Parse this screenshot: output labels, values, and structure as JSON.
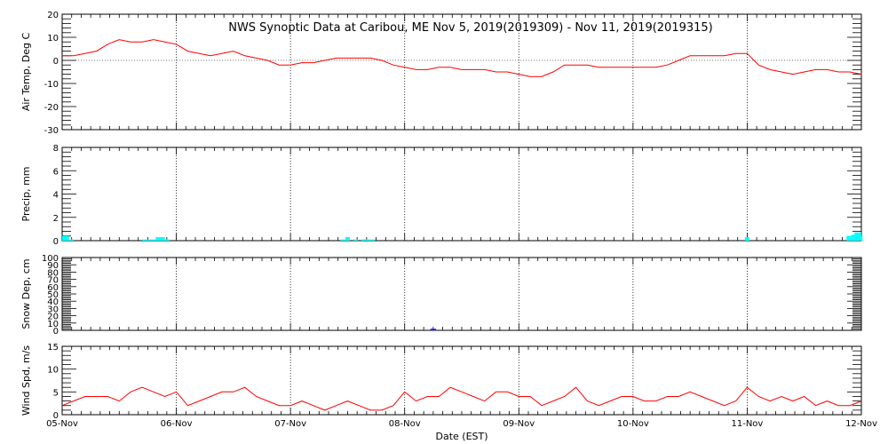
{
  "chart_data": {
    "title": "NWS Synoptic Data at Caribou, ME   Nov  5, 2019(2019309) - Nov 11, 2019(2019315)",
    "xlabel": "Date (EST)",
    "x_range_days": [
      0,
      7
    ],
    "x_ticks": [
      "05-Nov",
      "06-Nov",
      "07-Nov",
      "08-Nov",
      "09-Nov",
      "10-Nov",
      "11-Nov",
      "12-Nov"
    ],
    "panels": [
      {
        "type": "line",
        "ylabel": "Air Temp, Deg C",
        "ylim": [
          -30,
          20
        ],
        "yticks": [
          -30,
          -20,
          -10,
          0,
          10,
          20
        ],
        "color": "#ff0000",
        "grid": true,
        "series": {
          "x": [
            0,
            0.1,
            0.2,
            0.3,
            0.4,
            0.5,
            0.6,
            0.7,
            0.8,
            0.9,
            1.0,
            1.1,
            1.2,
            1.3,
            1.4,
            1.5,
            1.6,
            1.7,
            1.8,
            1.9,
            2.0,
            2.1,
            2.2,
            2.3,
            2.4,
            2.5,
            2.6,
            2.7,
            2.8,
            2.9,
            3.0,
            3.1,
            3.2,
            3.3,
            3.4,
            3.5,
            3.6,
            3.7,
            3.8,
            3.9,
            4.0,
            4.1,
            4.2,
            4.3,
            4.4,
            4.5,
            4.6,
            4.7,
            4.8,
            4.9,
            5.0,
            5.1,
            5.2,
            5.3,
            5.4,
            5.5,
            5.6,
            5.7,
            5.8,
            5.9,
            6.0,
            6.1,
            6.2,
            6.3,
            6.4,
            6.5,
            6.6,
            6.7,
            6.8,
            6.9,
            7.0
          ],
          "y": [
            2,
            2,
            3,
            4,
            7,
            9,
            8,
            8,
            9,
            8,
            7,
            4,
            3,
            2,
            3,
            4,
            2,
            1,
            0,
            -2,
            -2,
            -1,
            -1,
            0,
            1,
            1,
            1,
            1,
            0,
            -2,
            -3,
            -4,
            -4,
            -3,
            -3,
            -4,
            -4,
            -4,
            -5,
            -5,
            -6,
            -7,
            -7,
            -5,
            -2,
            -2,
            -2,
            -3,
            -3,
            -3,
            -3,
            -3,
            -3,
            -2,
            0,
            2,
            2,
            2,
            2,
            3,
            3,
            -2,
            -4,
            -5,
            -6,
            -5,
            -4,
            -4,
            -5,
            -5,
            -6
          ]
        }
      },
      {
        "type": "bar",
        "ylabel": "Precip, mm",
        "ylim": [
          0,
          8
        ],
        "yticks": [
          0,
          2,
          4,
          6,
          8
        ],
        "color": "#00ffff",
        "grid": true,
        "bars": [
          {
            "x": 0.0,
            "w": 0.06,
            "v": 0.4
          },
          {
            "x": 0.06,
            "w": 0.04,
            "v": 0.1
          },
          {
            "x": 0.7,
            "w": 0.12,
            "v": 0.1
          },
          {
            "x": 0.82,
            "w": 0.08,
            "v": 0.3
          },
          {
            "x": 0.9,
            "w": 0.04,
            "v": 0.1
          },
          {
            "x": 2.44,
            "w": 0.04,
            "v": 0.1
          },
          {
            "x": 2.48,
            "w": 0.04,
            "v": 0.3
          },
          {
            "x": 2.55,
            "w": 0.04,
            "v": 0.1
          },
          {
            "x": 2.62,
            "w": 0.12,
            "v": 0.1
          },
          {
            "x": 6.97,
            "w": 0.04,
            "v": 0.4
          },
          {
            "x": 6.94,
            "w": 0.03,
            "v": 0.1
          },
          {
            "x": 6.87,
            "w": 0.04,
            "v": 0.4
          },
          {
            "x": 6.91,
            "w": 0.03,
            "v": 0.5
          },
          {
            "x": 6.94,
            "w": 0.06,
            "v": 0.7
          },
          {
            "x": 5.98,
            "w": 0.04,
            "v": 0.3
          }
        ]
      },
      {
        "type": "bar",
        "ylabel": "Snow Dep, cm",
        "ylim": [
          0,
          100
        ],
        "yticks": [
          0,
          10,
          20,
          30,
          40,
          50,
          60,
          70,
          80,
          90,
          100
        ],
        "color": "#0000cc",
        "outline": true,
        "grid": true,
        "bars": [
          {
            "x": 3.23,
            "w": 0.04,
            "v": 1.5
          }
        ]
      },
      {
        "type": "line",
        "ylabel": "Wind Spd, m/s",
        "ylim": [
          0,
          15
        ],
        "yticks": [
          0,
          5,
          10,
          15
        ],
        "color": "#ff0000",
        "grid": true,
        "series": {
          "x": [
            0,
            0.1,
            0.2,
            0.3,
            0.4,
            0.5,
            0.6,
            0.7,
            0.8,
            0.9,
            1.0,
            1.1,
            1.2,
            1.3,
            1.4,
            1.5,
            1.6,
            1.7,
            1.8,
            1.9,
            2.0,
            2.1,
            2.2,
            2.3,
            2.4,
            2.5,
            2.6,
            2.7,
            2.8,
            2.9,
            3.0,
            3.1,
            3.2,
            3.3,
            3.4,
            3.5,
            3.6,
            3.7,
            3.8,
            3.9,
            4.0,
            4.1,
            4.2,
            4.3,
            4.4,
            4.5,
            4.6,
            4.7,
            4.8,
            4.9,
            5.0,
            5.1,
            5.2,
            5.3,
            5.4,
            5.5,
            5.6,
            5.7,
            5.8,
            5.9,
            6.0,
            6.1,
            6.2,
            6.3,
            6.4,
            6.5,
            6.6,
            6.7,
            6.8,
            6.9,
            7.0
          ],
          "y": [
            2,
            3,
            4,
            4,
            4,
            3,
            5,
            6,
            5,
            4,
            5,
            2,
            3,
            4,
            5,
            5,
            6,
            4,
            3,
            2,
            2,
            3,
            2,
            1,
            2,
            3,
            2,
            1,
            1,
            2,
            5,
            3,
            4,
            4,
            6,
            5,
            4,
            3,
            5,
            5,
            4,
            4,
            2,
            3,
            4,
            6,
            3,
            2,
            3,
            4,
            4,
            3,
            3,
            4,
            4,
            5,
            4,
            3,
            2,
            3,
            6,
            4,
            3,
            4,
            3,
            4,
            2,
            3,
            2,
            2,
            3
          ]
        }
      }
    ]
  }
}
